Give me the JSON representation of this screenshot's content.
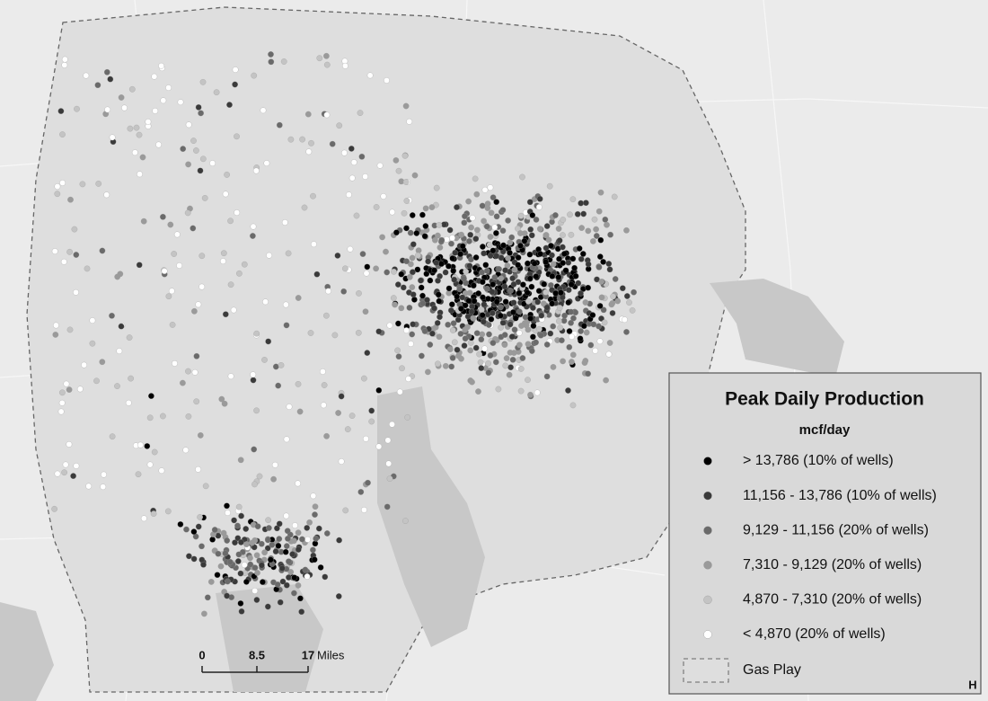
{
  "legend": {
    "title": "Peak Daily Production",
    "subtitle": "mcf/day",
    "classes": [
      {
        "label": "> 13,786 (10% of wells)",
        "color": "#000000"
      },
      {
        "label": "11,156 - 13,786 (10% of wells)",
        "color": "#3a3a3a"
      },
      {
        "label": "9,129 - 11,156 (20% of wells)",
        "color": "#6a6a6a"
      },
      {
        "label": "7,310 - 9,129 (20% of wells)",
        "color": "#9a9a9a"
      },
      {
        "label": "4,870 - 7,310 (20% of wells)",
        "color": "#c4c4c4"
      },
      {
        "label": "< 4,870 (20% of wells)",
        "color": "#ffffff"
      }
    ],
    "gas_play": "Gas Play"
  },
  "scale_bar": {
    "ticks": [
      "0",
      "8.5",
      "17"
    ],
    "unit": "Miles"
  },
  "logo": "H"
}
